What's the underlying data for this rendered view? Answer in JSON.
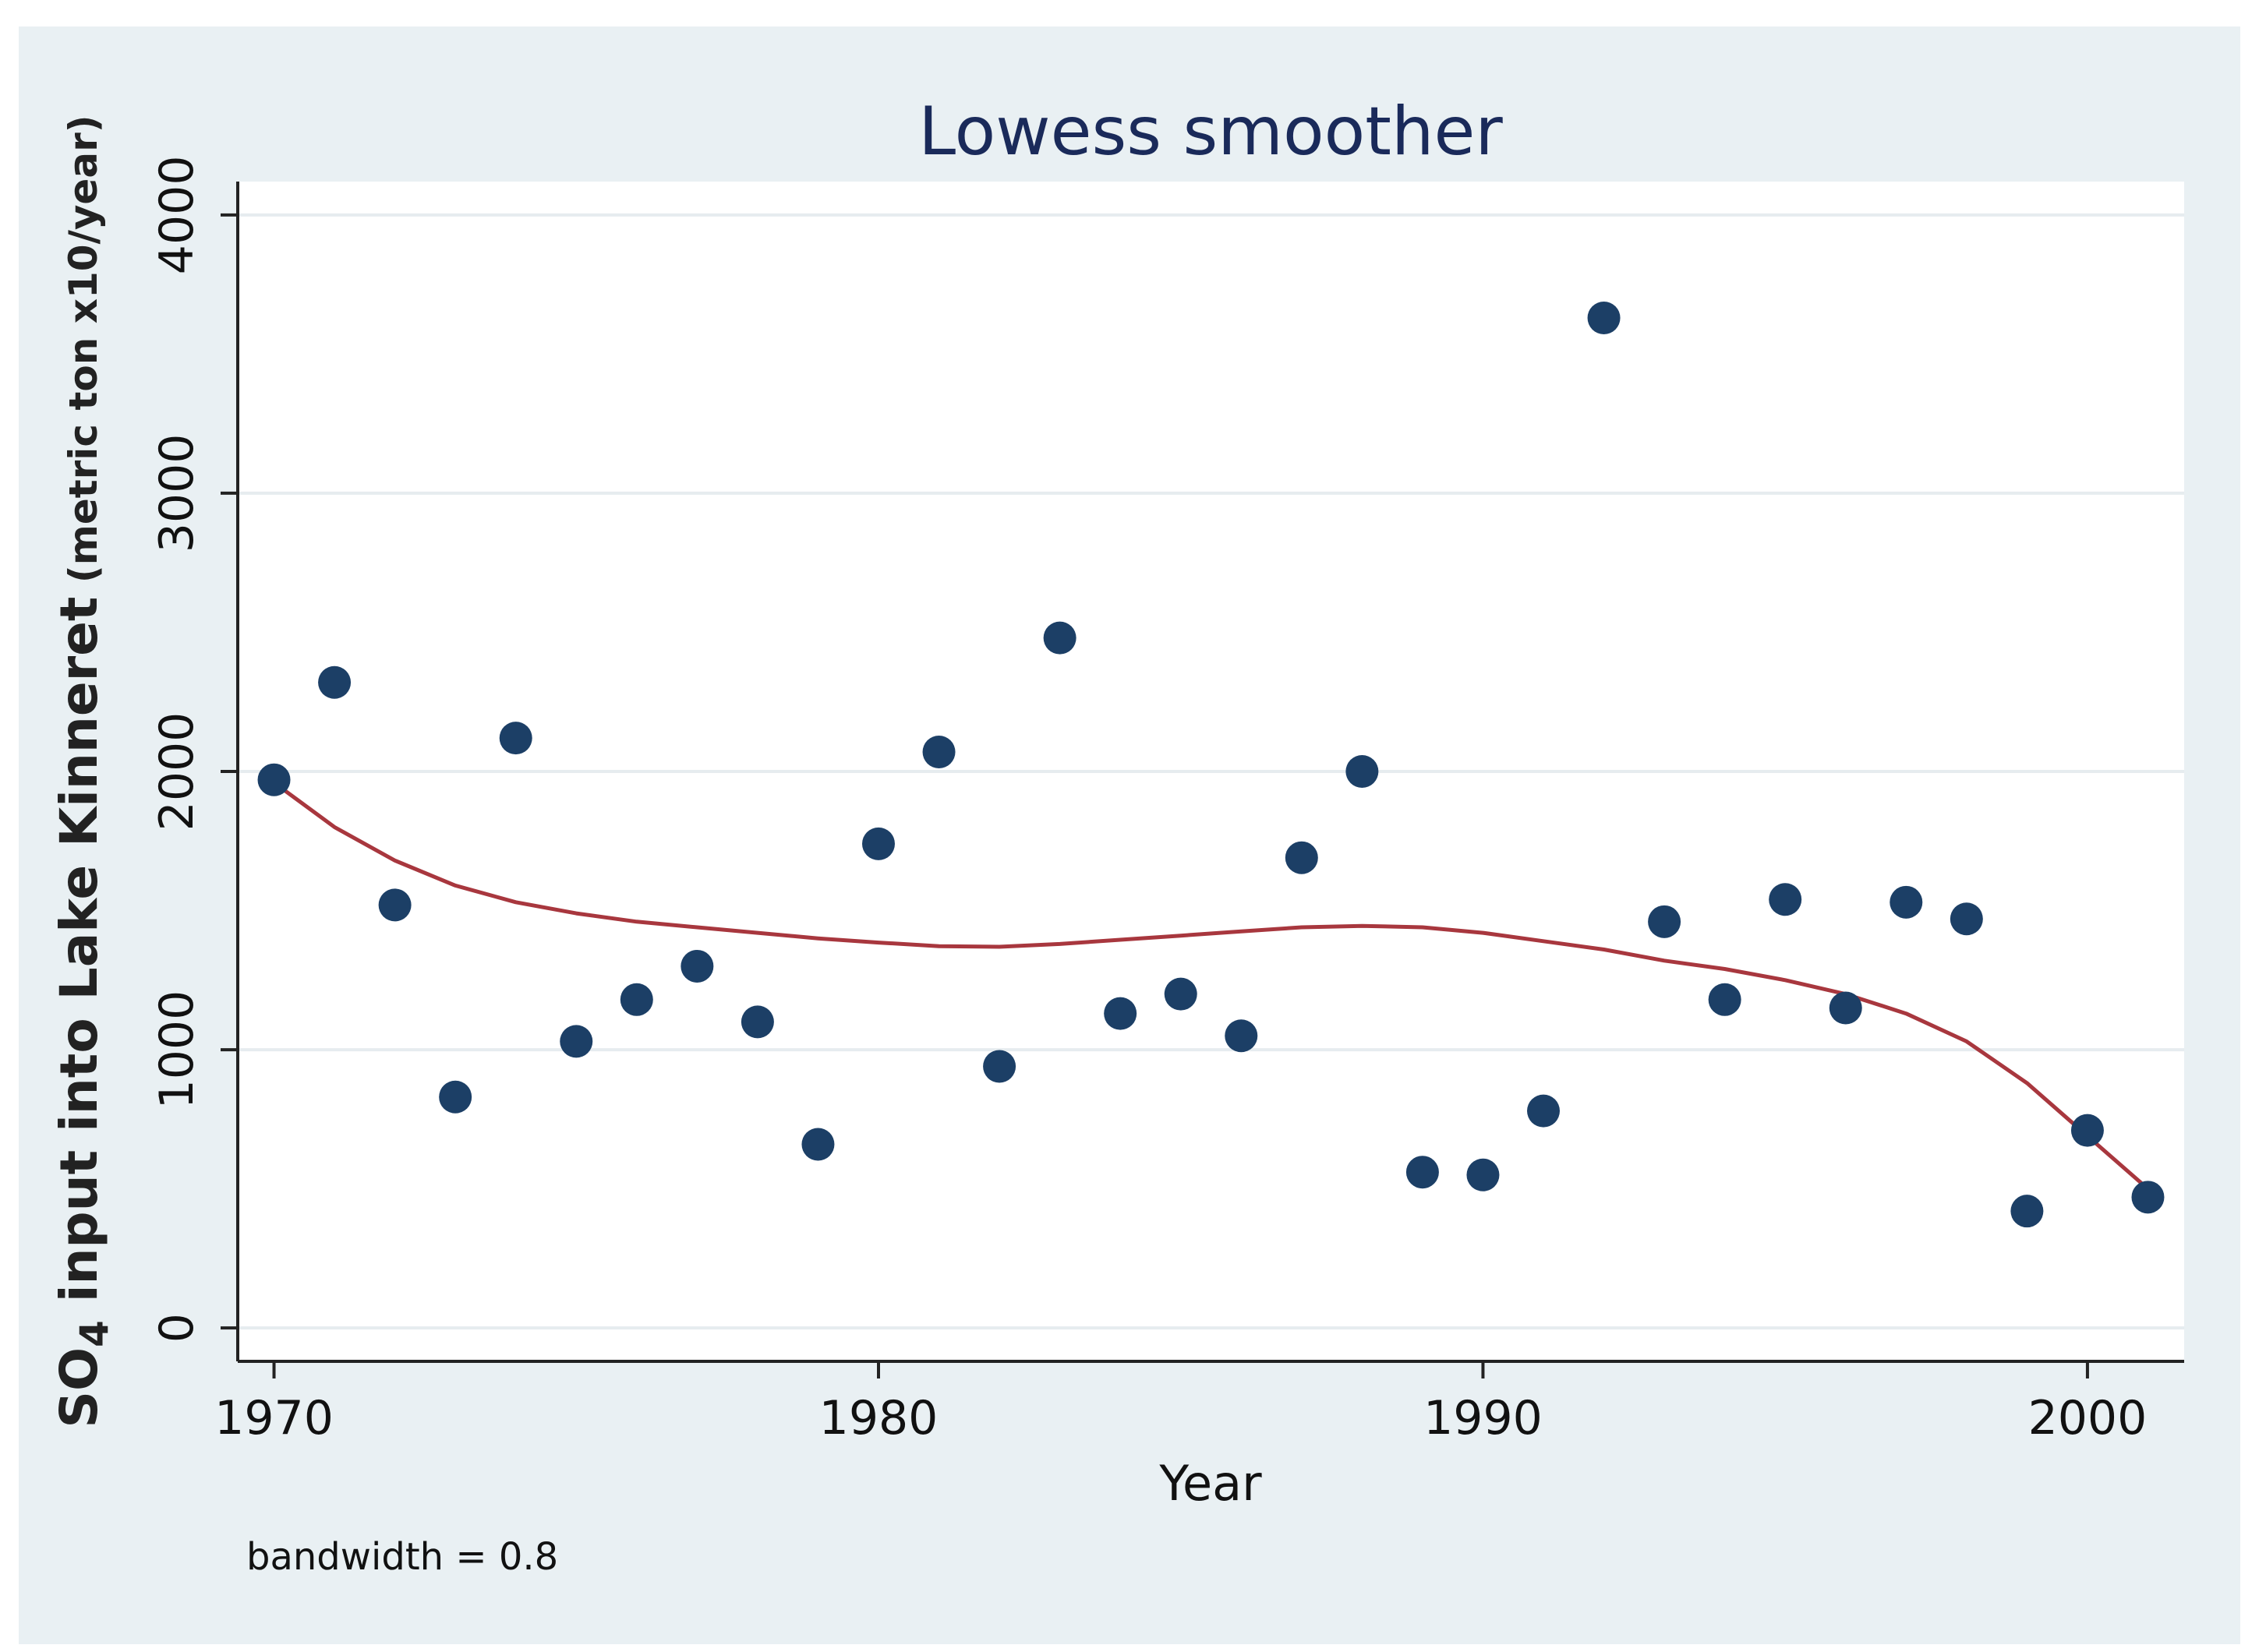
{
  "chart_data": {
    "type": "scatter",
    "title": "Lowess smoother",
    "xlabel": "Year",
    "ylabel": {
      "prefix": "SO",
      "subscript": "4",
      "main": " input into Lake Kinneret",
      "units": " (metric ton x10/year)"
    },
    "xlim": [
      1969.4,
      2001.6
    ],
    "ylim": [
      -120,
      4120
    ],
    "xticks": [
      1970,
      1980,
      1990,
      2000
    ],
    "yticks": [
      0,
      1000,
      2000,
      3000,
      4000
    ],
    "grid": true,
    "note": "bandwidth = 0.8",
    "colors": {
      "outer_background": "#e9f0f3",
      "plot_background": "#ffffff",
      "grid": "#e6ecef",
      "axis": "#222222",
      "points": "#1c3f66",
      "smoother": "#a8373e"
    },
    "series": [
      {
        "name": "SO4 input",
        "kind": "scatter",
        "x": [
          1970,
          1971,
          1972,
          1973,
          1974,
          1975,
          1976,
          1977,
          1978,
          1979,
          1980,
          1981,
          1982,
          1983,
          1984,
          1985,
          1986,
          1987,
          1988,
          1989,
          1990,
          1991,
          1992,
          1993,
          1994,
          1995,
          1996,
          1997,
          1998,
          1999,
          2000,
          2001
        ],
        "y": [
          1970,
          2320,
          1520,
          830,
          2120,
          1030,
          1180,
          1300,
          1100,
          660,
          1740,
          2070,
          940,
          2480,
          1130,
          1200,
          1050,
          1690,
          2000,
          560,
          550,
          780,
          3630,
          1460,
          1180,
          1540,
          1150,
          1530,
          1470,
          420,
          710,
          470
        ]
      },
      {
        "name": "Lowess smoother",
        "kind": "line",
        "x": [
          1970,
          1971,
          1972,
          1973,
          1974,
          1975,
          1976,
          1977,
          1978,
          1979,
          1980,
          1981,
          1982,
          1983,
          1984,
          1985,
          1986,
          1987,
          1988,
          1989,
          1990,
          1991,
          1992,
          1993,
          1994,
          1995,
          1996,
          1997,
          1998,
          1999,
          2000,
          2001
        ],
        "y": [
          1960,
          1800,
          1680,
          1590,
          1530,
          1490,
          1460,
          1440,
          1420,
          1400,
          1385,
          1372,
          1370,
          1380,
          1395,
          1410,
          1425,
          1440,
          1445,
          1440,
          1420,
          1390,
          1360,
          1320,
          1290,
          1250,
          1200,
          1130,
          1030,
          880,
          690,
          500
        ]
      }
    ]
  }
}
